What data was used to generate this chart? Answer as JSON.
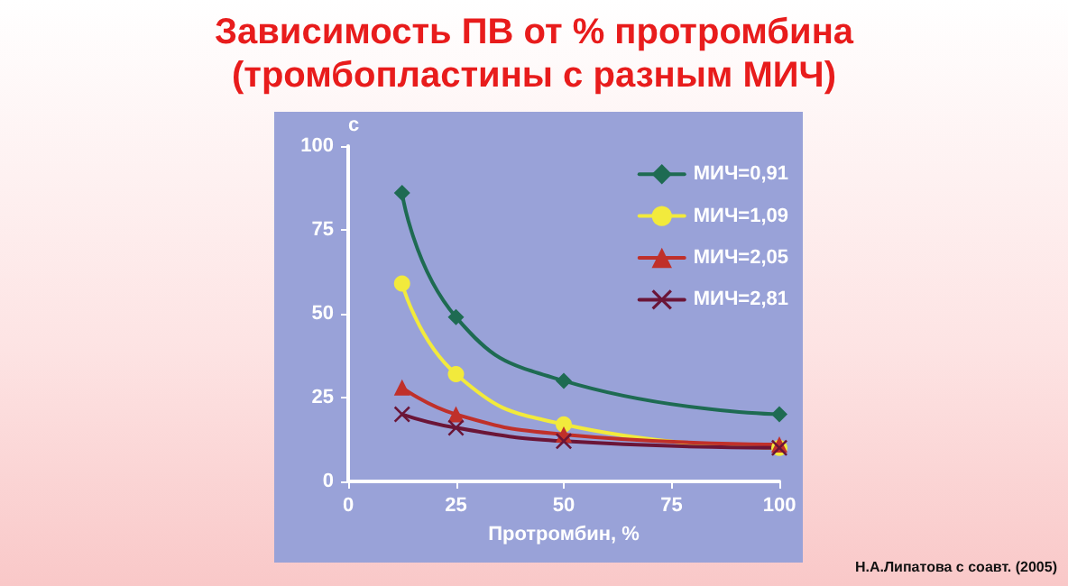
{
  "chart_data": {
    "type": "line",
    "title": "Зависимость ПВ от % протромбина (тромбопластины  с разным МИЧ)",
    "xlabel": "Протромбин, %",
    "ylabel": "с",
    "annotations": [
      "Н.А.Липатова с соавт. (2005)"
    ],
    "x": [
      12.5,
      25,
      50,
      100
    ],
    "series": [
      {
        "name": "МИЧ=0,91",
        "color": "#1e6b52",
        "marker": "diamond",
        "values": [
          86,
          49,
          30,
          20
        ]
      },
      {
        "name": "МИЧ=1,09",
        "color": "#f2ea3c",
        "marker": "circle",
        "values": [
          59,
          32,
          17,
          10
        ]
      },
      {
        "name": "МИЧ=2,05",
        "color": "#c0302a",
        "marker": "triangle",
        "values": [
          28,
          20,
          14,
          11
        ]
      },
      {
        "name": "МИЧ=2,81",
        "color": "#6b1537",
        "marker": "cross",
        "values": [
          20,
          16,
          12,
          10
        ]
      }
    ],
    "xlim": [
      0,
      100
    ],
    "xticks": [
      0,
      25,
      50,
      75,
      100
    ],
    "ylim": [
      0,
      100
    ],
    "yticks": [
      0,
      25,
      50,
      75,
      100
    ],
    "grid": false,
    "legend": "top right",
    "line_style": "solid"
  }
}
